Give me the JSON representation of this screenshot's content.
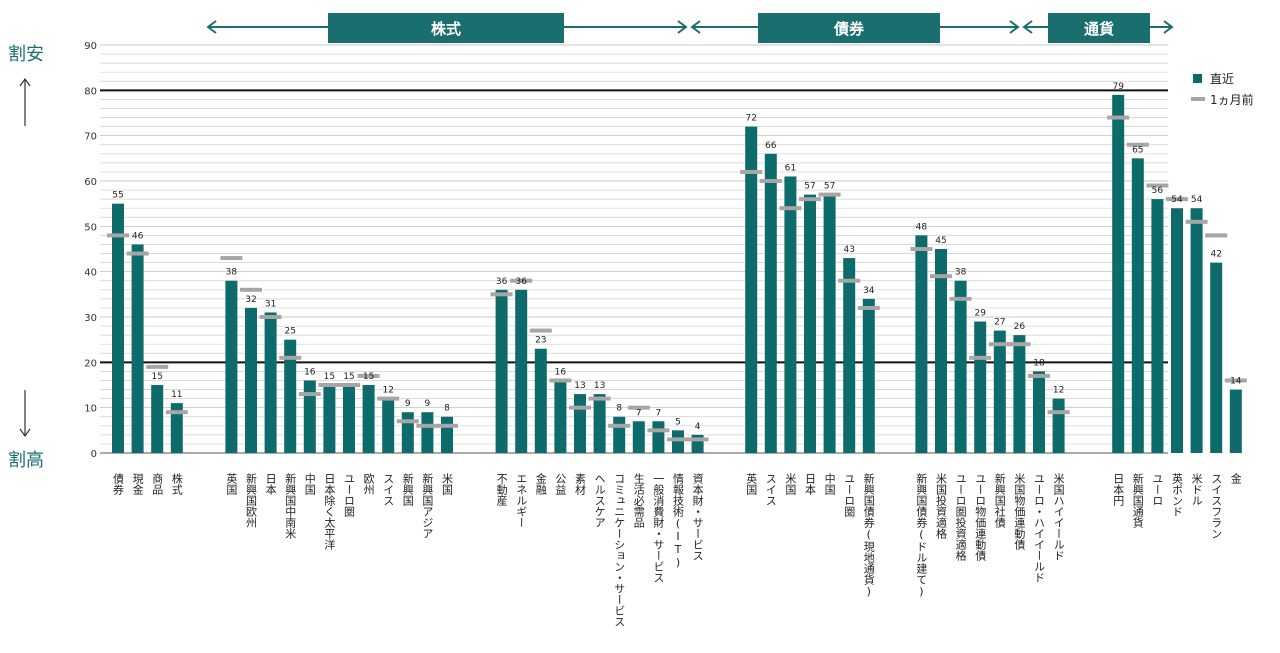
{
  "side_labels": {
    "top": "割安",
    "bottom": "割高"
  },
  "groups": [
    {
      "label": "株式"
    },
    {
      "label": "債券"
    },
    {
      "label": "通貨"
    }
  ],
  "legend": {
    "current": "直近",
    "previous": "1ヵ月前"
  },
  "colors": {
    "bar": "#0e6b6b",
    "marker": "#a6a6a6",
    "group_header": "#1b6e6e",
    "threshold": "#111111"
  },
  "chart_data": {
    "type": "bar",
    "ylim": [
      0,
      90
    ],
    "yticks": [
      0,
      10,
      20,
      30,
      40,
      50,
      60,
      70,
      80,
      90
    ],
    "thresholds": [
      20,
      80
    ],
    "categories": [
      "債券",
      "現金",
      "商品",
      "株式",
      "英国",
      "新興国欧州",
      "日本",
      "新興国中南米",
      "中国",
      "日本除く太平洋",
      "ユーロ圏",
      "欧州",
      "スイス",
      "新興国",
      "新興国アジア",
      "米国",
      "不動産",
      "エネルギー",
      "金融",
      "公益",
      "素材",
      "ヘルスケア",
      "コミュニケーション・サービス",
      "生活必需品",
      "一般消費財・サービス",
      "情報技術(IT)",
      "資本財・サービス",
      "英国",
      "スイス",
      "米国",
      "日本",
      "中国",
      "ユーロ圏",
      "新興国債券(現地通貨)",
      "新興国債券(ドル建て)",
      "米国投資適格",
      "ユーロ圏投資適格",
      "ユーロ物価連動債",
      "新興国社債",
      "米国物価連動債",
      "ユーロ・ハイイールド",
      "米国ハイイールド",
      "日本円",
      "新興国通貨",
      "ユーロ",
      "英ポンド",
      "米ドル",
      "スイスフラン",
      "金"
    ],
    "series": [
      {
        "name": "直近",
        "values": [
          55,
          46,
          15,
          11,
          38,
          32,
          31,
          25,
          16,
          15,
          15,
          15,
          12,
          9,
          9,
          8,
          36,
          36,
          23,
          16,
          13,
          13,
          8,
          7,
          7,
          5,
          4,
          72,
          66,
          61,
          57,
          57,
          43,
          34,
          48,
          45,
          38,
          29,
          27,
          26,
          18,
          12,
          79,
          65,
          56,
          54,
          54,
          42,
          14
        ]
      },
      {
        "name": "1ヵ月前",
        "values": [
          48,
          44,
          19,
          9,
          43,
          36,
          30,
          21,
          13,
          15,
          15,
          17,
          12,
          7,
          6,
          6,
          35,
          38,
          27,
          16,
          10,
          12,
          6,
          10,
          5,
          3,
          3,
          62,
          60,
          54,
          56,
          57,
          38,
          32,
          45,
          39,
          34,
          21,
          24,
          24,
          17,
          9,
          74,
          68,
          59,
          56,
          51,
          48,
          16
        ]
      }
    ]
  }
}
